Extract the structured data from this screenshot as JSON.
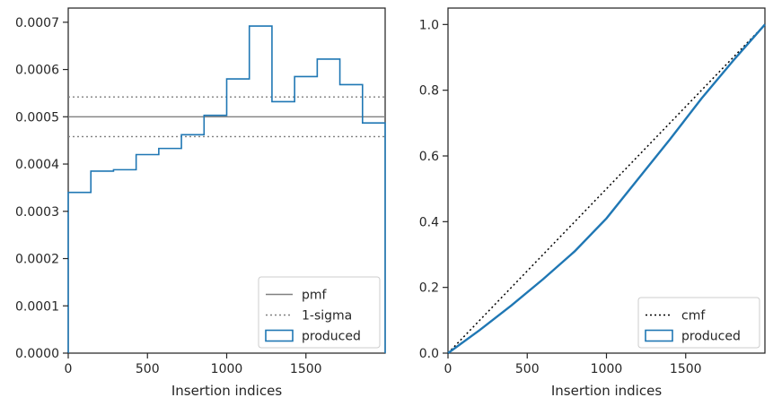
{
  "chart_data": [
    {
      "type": "step",
      "title": "",
      "xlabel": "Insertion indices",
      "ylabel": "",
      "xlim": [
        0,
        2000
      ],
      "ylim": [
        0,
        0.00073
      ],
      "xticks": [
        0,
        500,
        1000,
        1500
      ],
      "xtick_labels": [
        "0",
        "500",
        "1000",
        "1500"
      ],
      "yticks": [
        0,
        0.0001,
        0.0002,
        0.0003,
        0.0004,
        0.0005,
        0.0006,
        0.0007
      ],
      "ytick_labels": [
        "0.0000",
        "0.0001",
        "0.0002",
        "0.0003",
        "0.0004",
        "0.0005",
        "0.0006",
        "0.0007"
      ],
      "grid": false,
      "legend_position": "lower-right",
      "hlines": [
        {
          "name": "pmf",
          "y": 0.0005,
          "style": "solid",
          "color": "#808080"
        },
        {
          "name": "1-sigma",
          "y": 0.000542,
          "style": "dotted",
          "color": "#808080"
        },
        {
          "name": "1-sigma",
          "y": 0.000458,
          "style": "dotted",
          "color": "#808080"
        }
      ],
      "histogram": {
        "name": "produced",
        "color": "#1f77b4",
        "edges": [
          0,
          142.857,
          285.714,
          428.571,
          571.429,
          714.286,
          857.143,
          1000,
          1142.857,
          1285.714,
          1428.571,
          1571.429,
          1714.286,
          1857.143,
          2000
        ],
        "values": [
          0.00034,
          0.000385,
          0.000388,
          0.00042,
          0.000433,
          0.000462,
          0.000503,
          0.00058,
          0.000692,
          0.000532,
          0.000585,
          0.000622,
          0.000568,
          0.000487
        ]
      },
      "legend": [
        "pmf",
        "1-sigma",
        "produced"
      ]
    },
    {
      "type": "line",
      "title": "",
      "xlabel": "Insertion indices",
      "ylabel": "",
      "xlim": [
        0,
        2000
      ],
      "ylim": [
        0,
        1.05
      ],
      "xticks": [
        0,
        500,
        1000,
        1500
      ],
      "xtick_labels": [
        "0",
        "500",
        "1000",
        "1500"
      ],
      "yticks": [
        0,
        0.2,
        0.4,
        0.6,
        0.8,
        1.0
      ],
      "ytick_labels": [
        "0.0",
        "0.2",
        "0.4",
        "0.6",
        "0.8",
        "1.0"
      ],
      "grid": false,
      "legend_position": "lower-right",
      "series": [
        {
          "name": "cmf",
          "style": "dotted",
          "color": "#000000",
          "x": [
            0,
            2000
          ],
          "y": [
            0,
            1.0
          ]
        },
        {
          "name": "produced",
          "style": "solid",
          "color": "#1f77b4",
          "x": [
            0,
            200,
            400,
            600,
            800,
            1000,
            1200,
            1400,
            1600,
            1800,
            2000
          ],
          "y": [
            0,
            0.07,
            0.145,
            0.225,
            0.31,
            0.41,
            0.53,
            0.65,
            0.775,
            0.89,
            1.0
          ]
        }
      ],
      "legend": [
        "cmf",
        "produced"
      ]
    }
  ]
}
